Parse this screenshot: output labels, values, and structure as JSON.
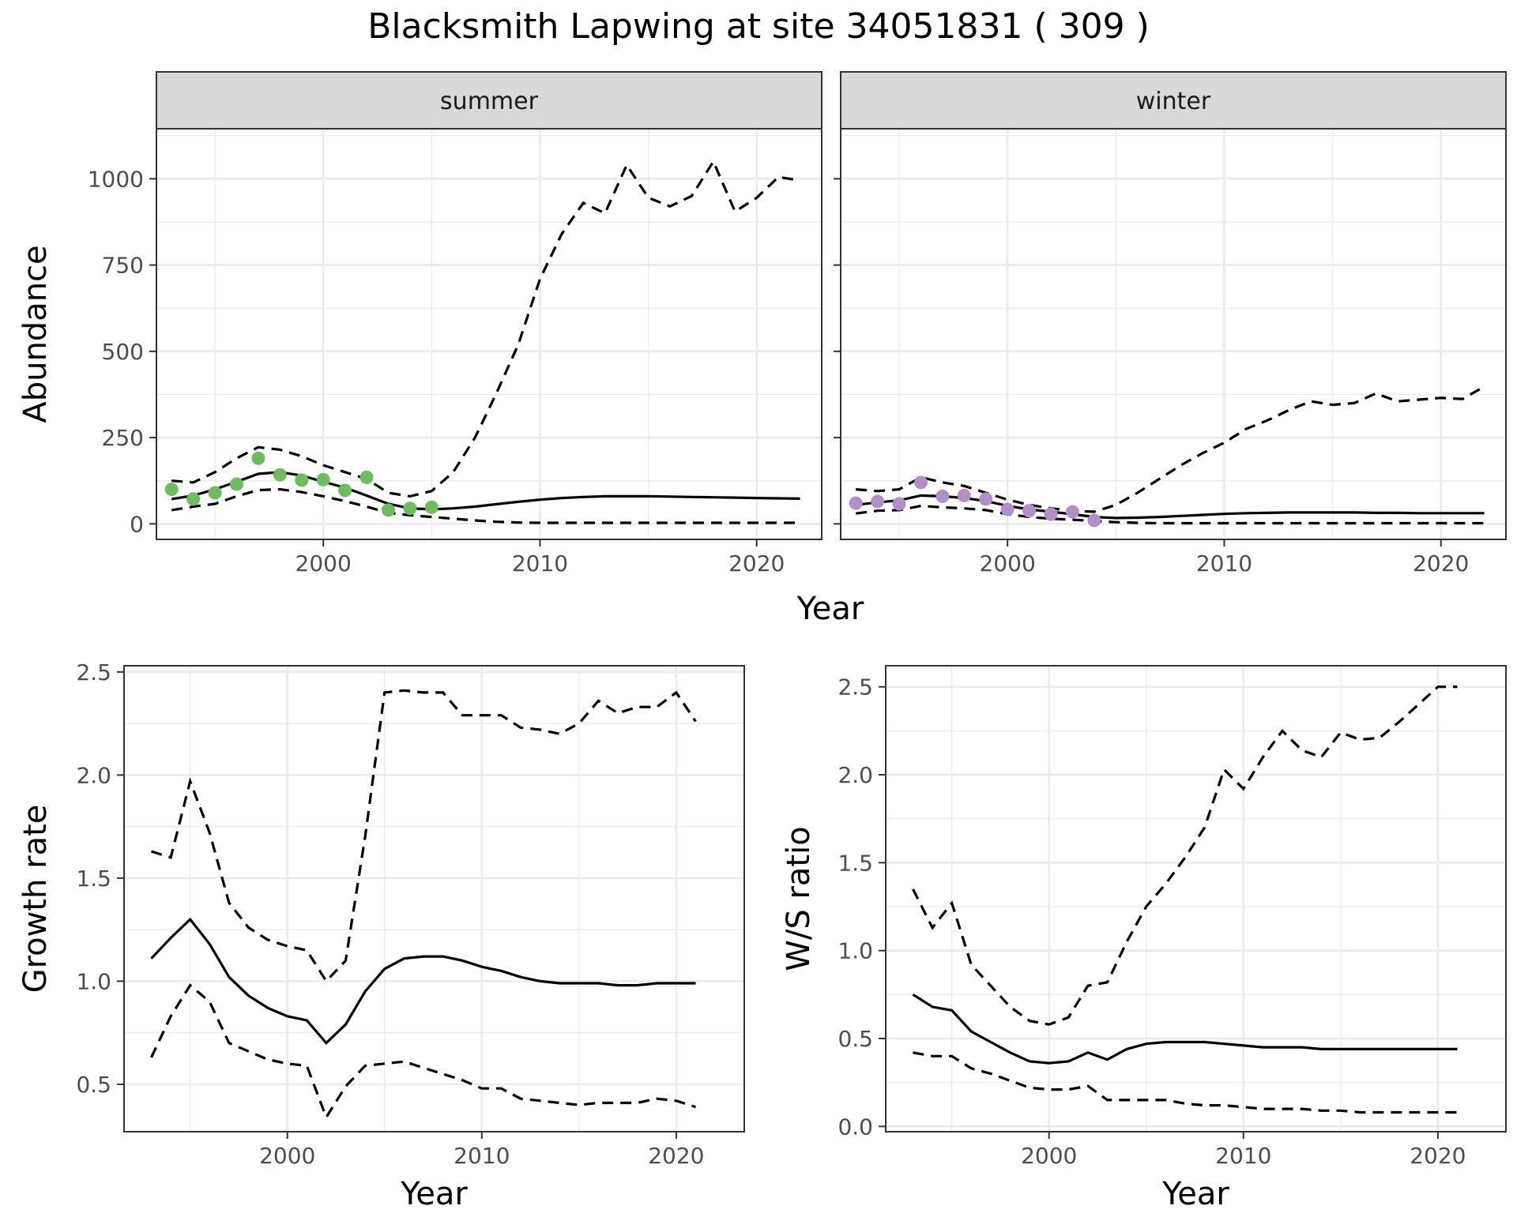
{
  "figure": {
    "title": "Blacksmith Lapwing at site 34051831 ( 309 )"
  },
  "chart_data": [
    {
      "type": "line",
      "panel": "summer",
      "facet_label": "summer",
      "xlabel": "Year",
      "ylabel": "Abundance",
      "xlim": [
        1992.3,
        2023.0
      ],
      "ylim": [
        -45,
        1145
      ],
      "x_ticks": [
        2000,
        2010,
        2020
      ],
      "x_tick_labels": [
        "2000",
        "2010",
        "2020"
      ],
      "y_ticks": [
        0,
        250,
        500,
        750,
        1000
      ],
      "y_tick_labels": [
        "0",
        "250",
        "500",
        "750",
        "1000"
      ],
      "grid": true,
      "point_color": "#6ebd5c",
      "fit": {
        "x": [
          1993,
          1994,
          1995,
          1996,
          1997,
          1998,
          1999,
          2000,
          2001,
          2002,
          2003,
          2004,
          2005,
          2006,
          2007,
          2008,
          2009,
          2010,
          2011,
          2012,
          2013,
          2014,
          2015,
          2016,
          2017,
          2018,
          2019,
          2020,
          2021,
          2022
        ],
        "y": [
          72,
          82,
          100,
          122,
          145,
          150,
          140,
          122,
          105,
          82,
          58,
          45,
          42,
          45,
          50,
          57,
          64,
          70,
          75,
          78,
          80,
          80,
          80,
          79,
          78,
          77,
          76,
          75,
          74,
          73
        ]
      },
      "upper": {
        "x": [
          1993,
          1994,
          1995,
          1996,
          1997,
          1998,
          1999,
          2000,
          2001,
          2002,
          2003,
          2004,
          2005,
          2006,
          2007,
          2008,
          2009,
          2010,
          2011,
          2012,
          2013,
          2014,
          2015,
          2016,
          2017,
          2018,
          2019,
          2020,
          2021,
          2022
        ],
        "y": [
          125,
          120,
          150,
          190,
          222,
          215,
          196,
          170,
          150,
          130,
          90,
          80,
          95,
          150,
          250,
          380,
          520,
          710,
          840,
          930,
          900,
          1040,
          945,
          920,
          950,
          1050,
          905,
          945,
          1005,
          995
        ]
      },
      "lower": {
        "x": [
          1993,
          1994,
          1995,
          1996,
          1997,
          1998,
          1999,
          2000,
          2001,
          2002,
          2003,
          2004,
          2005,
          2006,
          2007,
          2008,
          2009,
          2010,
          2011,
          2012,
          2013,
          2014,
          2015,
          2016,
          2017,
          2018,
          2019,
          2020,
          2021,
          2022
        ],
        "y": [
          40,
          50,
          58,
          80,
          98,
          100,
          92,
          80,
          66,
          50,
          32,
          25,
          20,
          15,
          10,
          6,
          4,
          3,
          3,
          3,
          3,
          3,
          3,
          3,
          3,
          3,
          3,
          3,
          3,
          3
        ]
      },
      "observed": {
        "x": [
          1993,
          1994,
          1995,
          1996,
          1997,
          1998,
          1999,
          2000,
          2001,
          2002,
          2003,
          2004,
          2005
        ],
        "y": [
          100,
          72,
          90,
          115,
          190,
          142,
          127,
          128,
          97,
          135,
          40,
          45,
          48
        ]
      }
    },
    {
      "type": "line",
      "panel": "winter",
      "facet_label": "winter",
      "xlabel": "Year",
      "ylabel": "Abundance",
      "xlim": [
        1992.3,
        2023.0
      ],
      "ylim": [
        -45,
        1145
      ],
      "x_ticks": [
        2000,
        2010,
        2020
      ],
      "x_tick_labels": [
        "2000",
        "2010",
        "2020"
      ],
      "y_ticks": [
        0,
        250,
        500,
        750,
        1000
      ],
      "grid": true,
      "point_color": "#b28fc9",
      "fit": {
        "x": [
          1993,
          1994,
          1995,
          1996,
          1997,
          1998,
          1999,
          2000,
          2001,
          2002,
          2003,
          2004,
          2005,
          2006,
          2007,
          2008,
          2009,
          2010,
          2011,
          2012,
          2013,
          2014,
          2015,
          2016,
          2017,
          2018,
          2019,
          2020,
          2021,
          2022
        ],
        "y": [
          55,
          62,
          68,
          82,
          80,
          75,
          66,
          52,
          42,
          35,
          28,
          20,
          17,
          18,
          20,
          23,
          26,
          29,
          31,
          32,
          33,
          33,
          33,
          33,
          32,
          32,
          31,
          31,
          31,
          31
        ]
      },
      "upper": {
        "x": [
          1993,
          1994,
          1995,
          1996,
          1997,
          1998,
          1999,
          2000,
          2001,
          2002,
          2003,
          2004,
          2005,
          2006,
          2007,
          2008,
          2009,
          2010,
          2011,
          2012,
          2013,
          2014,
          2015,
          2016,
          2017,
          2018,
          2019,
          2020,
          2021,
          2022
        ],
        "y": [
          100,
          95,
          100,
          135,
          120,
          110,
          90,
          70,
          55,
          45,
          38,
          35,
          55,
          90,
          130,
          170,
          205,
          235,
          275,
          300,
          330,
          355,
          345,
          350,
          378,
          355,
          360,
          365,
          362,
          398
        ]
      },
      "lower": {
        "x": [
          1993,
          1994,
          1995,
          1996,
          1997,
          1998,
          1999,
          2000,
          2001,
          2002,
          2003,
          2004,
          2005,
          2006,
          2007,
          2008,
          2009,
          2010,
          2011,
          2012,
          2013,
          2014,
          2015,
          2016,
          2017,
          2018,
          2019,
          2020,
          2021,
          2022
        ],
        "y": [
          30,
          38,
          40,
          52,
          48,
          45,
          40,
          28,
          20,
          15,
          12,
          8,
          5,
          3,
          2,
          2,
          2,
          2,
          2,
          2,
          2,
          2,
          2,
          2,
          2,
          2,
          2,
          2,
          2,
          2
        ]
      },
      "observed": {
        "x": [
          1993,
          1994,
          1995,
          1996,
          1997,
          1998,
          1999,
          2000,
          2001,
          2002,
          2003,
          2004
        ],
        "y": [
          60,
          65,
          58,
          120,
          80,
          82,
          72,
          42,
          38,
          28,
          35,
          10
        ]
      }
    },
    {
      "type": "line",
      "panel": "growth",
      "xlabel": "Year",
      "ylabel": "Growth rate",
      "xlim": [
        1991.6,
        2023.5
      ],
      "ylim": [
        0.27,
        2.53
      ],
      "x_ticks": [
        2000,
        2010,
        2020
      ],
      "x_tick_labels": [
        "2000",
        "2010",
        "2020"
      ],
      "y_ticks": [
        0.5,
        1.0,
        1.5,
        2.0,
        2.5
      ],
      "y_tick_labels": [
        "0.5",
        "1.0",
        "1.5",
        "2.0",
        "2.5"
      ],
      "grid": true,
      "fit": {
        "x": [
          1993,
          1994,
          1995,
          1996,
          1997,
          1998,
          1999,
          2000,
          2001,
          2002,
          2003,
          2004,
          2005,
          2006,
          2007,
          2008,
          2009,
          2010,
          2011,
          2012,
          2013,
          2014,
          2015,
          2016,
          2017,
          2018,
          2019,
          2020,
          2021
        ],
        "y": [
          1.11,
          1.21,
          1.3,
          1.18,
          1.02,
          0.93,
          0.87,
          0.83,
          0.81,
          0.7,
          0.79,
          0.95,
          1.06,
          1.11,
          1.12,
          1.12,
          1.1,
          1.07,
          1.05,
          1.02,
          1.0,
          0.99,
          0.99,
          0.99,
          0.98,
          0.98,
          0.99,
          0.99,
          0.99
        ]
      },
      "upper": {
        "x": [
          1993,
          1994,
          1995,
          1996,
          1997,
          1998,
          1999,
          2000,
          2001,
          2002,
          2003,
          2004,
          2005,
          2006,
          2007,
          2008,
          2009,
          2010,
          2011,
          2012,
          2013,
          2014,
          2015,
          2016,
          2017,
          2018,
          2019,
          2020,
          2021
        ],
        "y": [
          1.63,
          1.6,
          1.97,
          1.72,
          1.38,
          1.26,
          1.2,
          1.17,
          1.15,
          1.0,
          1.1,
          1.7,
          2.4,
          2.41,
          2.4,
          2.4,
          2.29,
          2.29,
          2.29,
          2.23,
          2.22,
          2.2,
          2.25,
          2.36,
          2.3,
          2.33,
          2.33,
          2.4,
          2.26
        ]
      },
      "lower": {
        "x": [
          1993,
          1994,
          1995,
          1996,
          1997,
          1998,
          1999,
          2000,
          2001,
          2002,
          2003,
          2004,
          2005,
          2006,
          2007,
          2008,
          2009,
          2010,
          2011,
          2012,
          2013,
          2014,
          2015,
          2016,
          2017,
          2018,
          2019,
          2020,
          2021
        ],
        "y": [
          0.63,
          0.83,
          0.98,
          0.9,
          0.7,
          0.66,
          0.62,
          0.6,
          0.59,
          0.34,
          0.49,
          0.59,
          0.6,
          0.61,
          0.58,
          0.55,
          0.52,
          0.48,
          0.48,
          0.43,
          0.42,
          0.41,
          0.4,
          0.41,
          0.41,
          0.41,
          0.43,
          0.42,
          0.39
        ]
      }
    },
    {
      "type": "line",
      "panel": "ratio",
      "xlabel": "Year",
      "ylabel": "W/S ratio",
      "xlim": [
        1991.6,
        2023.5
      ],
      "ylim": [
        -0.03,
        2.62
      ],
      "x_ticks": [
        2000,
        2010,
        2020
      ],
      "x_tick_labels": [
        "2000",
        "2010",
        "2020"
      ],
      "y_ticks": [
        0.0,
        0.5,
        1.0,
        1.5,
        2.0,
        2.5
      ],
      "y_tick_labels": [
        "0.0",
        "0.5",
        "1.0",
        "1.5",
        "2.0",
        "2.5"
      ],
      "grid": true,
      "fit": {
        "x": [
          1993,
          1994,
          1995,
          1996,
          1997,
          1998,
          1999,
          2000,
          2001,
          2002,
          2003,
          2004,
          2005,
          2006,
          2007,
          2008,
          2009,
          2010,
          2011,
          2012,
          2013,
          2014,
          2015,
          2016,
          2017,
          2018,
          2019,
          2020,
          2021
        ],
        "y": [
          0.75,
          0.68,
          0.66,
          0.54,
          0.48,
          0.42,
          0.37,
          0.36,
          0.37,
          0.42,
          0.38,
          0.44,
          0.47,
          0.48,
          0.48,
          0.48,
          0.47,
          0.46,
          0.45,
          0.45,
          0.45,
          0.44,
          0.44,
          0.44,
          0.44,
          0.44,
          0.44,
          0.44,
          0.44
        ]
      },
      "upper": {
        "x": [
          1993,
          1994,
          1995,
          1996,
          1997,
          1998,
          1999,
          2000,
          2001,
          2002,
          2003,
          2004,
          2005,
          2006,
          2007,
          2008,
          2009,
          2010,
          2011,
          2012,
          2013,
          2014,
          2015,
          2016,
          2017,
          2018,
          2019,
          2020,
          2021
        ],
        "y": [
          1.35,
          1.13,
          1.27,
          0.92,
          0.8,
          0.68,
          0.6,
          0.58,
          0.62,
          0.8,
          0.82,
          1.05,
          1.25,
          1.38,
          1.53,
          1.7,
          2.03,
          1.92,
          2.1,
          2.25,
          2.14,
          2.1,
          2.24,
          2.2,
          2.21,
          2.3,
          2.4,
          2.5,
          2.5
        ]
      },
      "lower": {
        "x": [
          1993,
          1994,
          1995,
          1996,
          1997,
          1998,
          1999,
          2000,
          2001,
          2002,
          2003,
          2004,
          2005,
          2006,
          2007,
          2008,
          2009,
          2010,
          2011,
          2012,
          2013,
          2014,
          2015,
          2016,
          2017,
          2018,
          2019,
          2020,
          2021
        ],
        "y": [
          0.42,
          0.4,
          0.4,
          0.33,
          0.3,
          0.26,
          0.22,
          0.21,
          0.21,
          0.23,
          0.15,
          0.15,
          0.15,
          0.15,
          0.13,
          0.12,
          0.12,
          0.11,
          0.1,
          0.1,
          0.1,
          0.09,
          0.09,
          0.08,
          0.08,
          0.08,
          0.08,
          0.08,
          0.08
        ]
      }
    }
  ]
}
